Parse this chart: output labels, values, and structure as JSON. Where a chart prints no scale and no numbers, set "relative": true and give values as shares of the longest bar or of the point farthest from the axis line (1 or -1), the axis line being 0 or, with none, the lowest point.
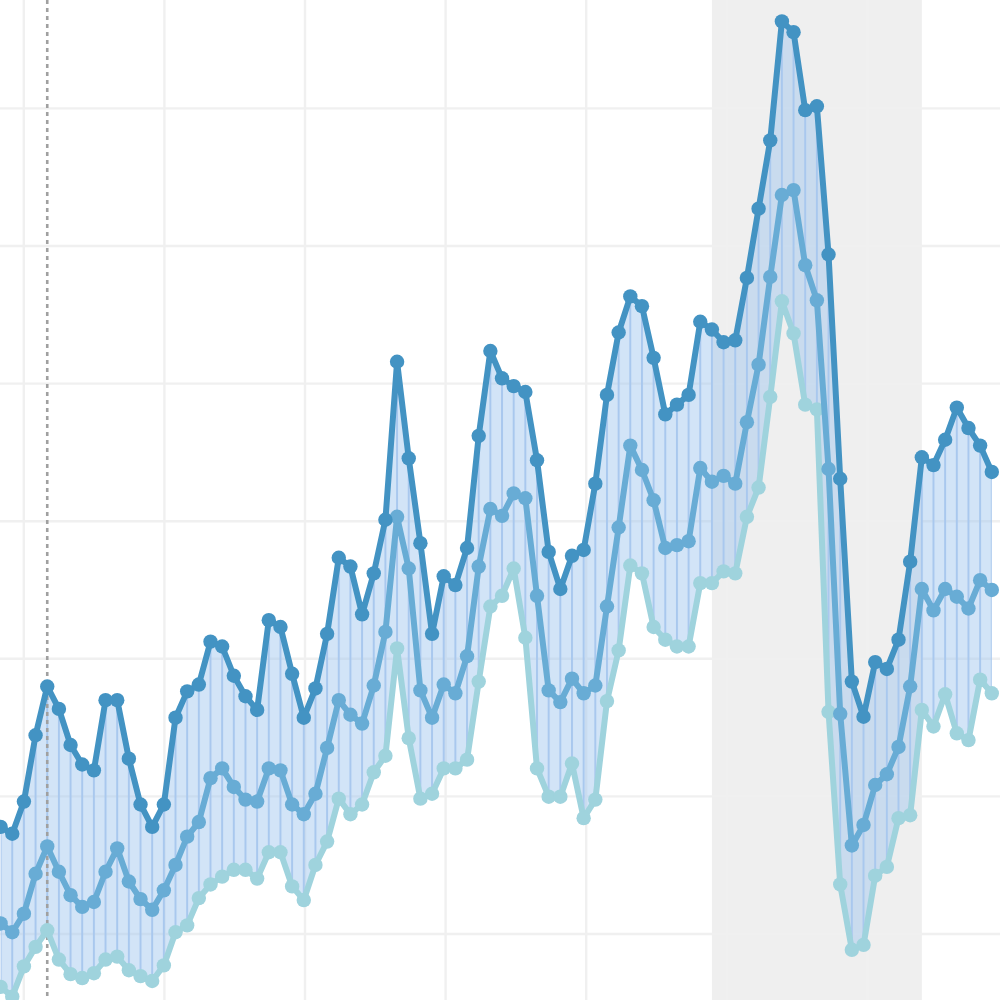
{
  "chart_data": {
    "type": "line",
    "relative": true,
    "grid": true,
    "marker": "circle",
    "line_style": "solid",
    "categories": [
      null,
      null,
      null,
      null,
      null,
      null,
      null,
      null,
      null,
      null,
      null,
      null,
      null,
      null,
      null,
      null,
      null,
      null,
      null,
      null,
      null,
      null,
      null,
      null,
      null,
      null,
      null,
      null,
      null,
      null,
      null,
      null,
      null,
      null,
      null,
      null,
      null,
      null,
      null,
      null,
      null,
      null,
      null,
      null,
      null,
      null,
      null,
      null,
      null,
      null,
      null,
      null,
      null,
      null,
      null,
      null,
      null,
      null,
      null,
      null,
      null,
      null,
      null,
      null,
      null,
      null,
      null,
      null,
      null,
      null,
      null,
      null,
      null,
      null,
      null,
      null,
      null,
      null,
      null,
      null,
      null,
      null,
      null,
      null,
      null,
      null
    ],
    "series": [
      {
        "color": "#4393c3",
        "values": [
          0.174,
          0.167,
          0.2,
          0.268,
          0.318,
          0.295,
          0.258,
          0.238,
          0.232,
          0.304,
          0.304,
          0.244,
          0.197,
          0.174,
          0.197,
          0.286,
          0.313,
          0.32,
          0.364,
          0.359,
          0.329,
          0.308,
          0.294,
          0.386,
          0.379,
          0.331,
          0.286,
          0.316,
          0.372,
          0.45,
          0.441,
          0.392,
          0.434,
          0.489,
          0.651,
          0.552,
          0.465,
          0.372,
          0.431,
          0.422,
          0.46,
          0.575,
          0.662,
          0.634,
          0.626,
          0.62,
          0.55,
          0.456,
          0.418,
          0.452,
          0.458,
          0.526,
          0.617,
          0.681,
          0.718,
          0.708,
          0.655,
          0.597,
          0.607,
          0.617,
          0.692,
          0.684,
          0.671,
          0.673,
          0.737,
          0.808,
          0.878,
          1,
          0.989,
          0.909,
          0.913,
          0.761,
          0.531,
          0.323,
          0.287,
          0.343,
          0.336,
          0.366,
          0.446,
          0.553,
          0.545,
          0.571,
          0.604,
          0.583,
          0.565,
          0.538
        ]
      },
      {
        "color": "#68acd5",
        "values": [
          0.075,
          0.066,
          0.085,
          0.126,
          0.154,
          0.128,
          0.104,
          0.092,
          0.097,
          0.128,
          0.152,
          0.118,
          0.1,
          0.089,
          0.109,
          0.135,
          0.164,
          0.179,
          0.224,
          0.234,
          0.215,
          0.202,
          0.2,
          0.234,
          0.232,
          0.197,
          0.187,
          0.208,
          0.255,
          0.304,
          0.289,
          0.28,
          0.319,
          0.374,
          0.492,
          0.439,
          0.314,
          0.286,
          0.32,
          0.311,
          0.349,
          0.441,
          0.5,
          0.493,
          0.516,
          0.511,
          0.411,
          0.314,
          0.302,
          0.326,
          0.311,
          0.319,
          0.4,
          0.481,
          0.565,
          0.54,
          0.509,
          0.46,
          0.463,
          0.467,
          0.542,
          0.528,
          0.534,
          0.526,
          0.589,
          0.648,
          0.738,
          0.822,
          0.827,
          0.75,
          0.714,
          0.541,
          0.29,
          0.155,
          0.176,
          0.217,
          0.228,
          0.256,
          0.318,
          0.418,
          0.396,
          0.418,
          0.41,
          0.398,
          0.427,
          0.417
        ],
        "lower": [
          0.01,
          0,
          0.031,
          0.051,
          0.068,
          0.038,
          0.023,
          0.019,
          0.024,
          0.038,
          0.041,
          0.027,
          0.021,
          0.016,
          0.032,
          0.066,
          0.073,
          0.101,
          0.115,
          0.123,
          0.13,
          0.13,
          0.121,
          0.148,
          0.148,
          0.113,
          0.099,
          0.135,
          0.159,
          0.203,
          0.187,
          0.197,
          0.23,
          0.247,
          0.357,
          0.265,
          0.203,
          0.208,
          0.234,
          0.234,
          0.243,
          0.323,
          0.4,
          0.411,
          0.439,
          0.368,
          0.234,
          0.205,
          0.205,
          0.239,
          0.183,
          0.202,
          0.303,
          0.355,
          0.442,
          0.434,
          0.379,
          0.366,
          0.359,
          0.359,
          0.424,
          0.424,
          0.436,
          0.434,
          0.492,
          0.522,
          0.615,
          0.713,
          0.68,
          0.607,
          0.602,
          0.292,
          0.115,
          0.048,
          0.053,
          0.124,
          0.133,
          0.183,
          0.186,
          0.294,
          0.277,
          0.31,
          0.27,
          0.263,
          0.325,
          0.311
        ],
        "upper": [
          0.174,
          0.167,
          0.2,
          0.268,
          0.318,
          0.295,
          0.258,
          0.238,
          0.232,
          0.304,
          0.304,
          0.244,
          0.197,
          0.174,
          0.197,
          0.286,
          0.313,
          0.32,
          0.364,
          0.359,
          0.329,
          0.308,
          0.294,
          0.386,
          0.379,
          0.331,
          0.286,
          0.316,
          0.372,
          0.45,
          0.441,
          0.392,
          0.434,
          0.489,
          0.651,
          0.552,
          0.465,
          0.372,
          0.431,
          0.422,
          0.46,
          0.575,
          0.662,
          0.634,
          0.626,
          0.62,
          0.55,
          0.456,
          0.418,
          0.452,
          0.458,
          0.526,
          0.617,
          0.681,
          0.718,
          0.708,
          0.655,
          0.597,
          0.607,
          0.617,
          0.692,
          0.684,
          0.671,
          0.673,
          0.737,
          0.808,
          0.878,
          1,
          0.989,
          0.909,
          0.913,
          0.761,
          0.531,
          0.323,
          0.287,
          0.343,
          0.336,
          0.366,
          0.446,
          0.553,
          0.545,
          0.571,
          0.604,
          0.583,
          0.565,
          0.538
        ]
      },
      {
        "color": "#9fd3dd",
        "values": [
          0.01,
          0,
          0.031,
          0.051,
          0.068,
          0.038,
          0.023,
          0.019,
          0.024,
          0.038,
          0.041,
          0.027,
          0.021,
          0.016,
          0.032,
          0.066,
          0.073,
          0.101,
          0.115,
          0.123,
          0.13,
          0.13,
          0.121,
          0.148,
          0.148,
          0.113,
          0.099,
          0.135,
          0.159,
          0.203,
          0.187,
          0.197,
          0.23,
          0.247,
          0.357,
          0.265,
          0.203,
          0.208,
          0.234,
          0.234,
          0.243,
          0.323,
          0.4,
          0.411,
          0.439,
          0.368,
          0.234,
          0.205,
          0.205,
          0.239,
          0.183,
          0.202,
          0.303,
          0.355,
          0.442,
          0.434,
          0.379,
          0.366,
          0.359,
          0.359,
          0.424,
          0.424,
          0.436,
          0.434,
          0.492,
          0.522,
          0.615,
          0.713,
          0.68,
          0.607,
          0.602,
          0.292,
          0.115,
          0.048,
          0.053,
          0.124,
          0.133,
          0.183,
          0.186,
          0.294,
          0.277,
          0.31,
          0.27,
          0.263,
          0.325,
          0.311
        ]
      }
    ]
  }
}
